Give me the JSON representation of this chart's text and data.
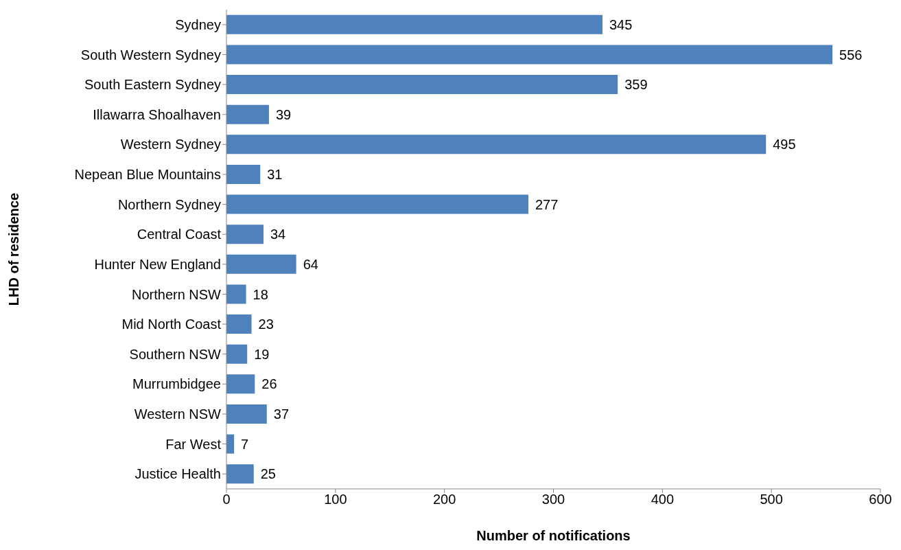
{
  "chart_data": {
    "type": "bar",
    "orientation": "horizontal",
    "xlabel": "Number of notifications",
    "ylabel": "LHD of residence",
    "categories": [
      "Sydney",
      "South Western Sydney",
      "South Eastern Sydney",
      "Illawarra Shoalhaven",
      "Western Sydney",
      "Nepean Blue Mountains",
      "Northern Sydney",
      "Central Coast",
      "Hunter New England",
      "Northern NSW",
      "Mid North Coast",
      "Southern NSW",
      "Murrumbidgee",
      "Western NSW",
      "Far West",
      "Justice Health"
    ],
    "values": [
      345,
      556,
      359,
      39,
      495,
      31,
      277,
      34,
      64,
      18,
      23,
      19,
      26,
      37,
      7,
      25
    ],
    "color": "#4f81bd",
    "xlim": [
      0,
      600
    ],
    "xticks": [
      0,
      100,
      200,
      300,
      400,
      500,
      600
    ],
    "grid": false,
    "data_labels": true
  }
}
